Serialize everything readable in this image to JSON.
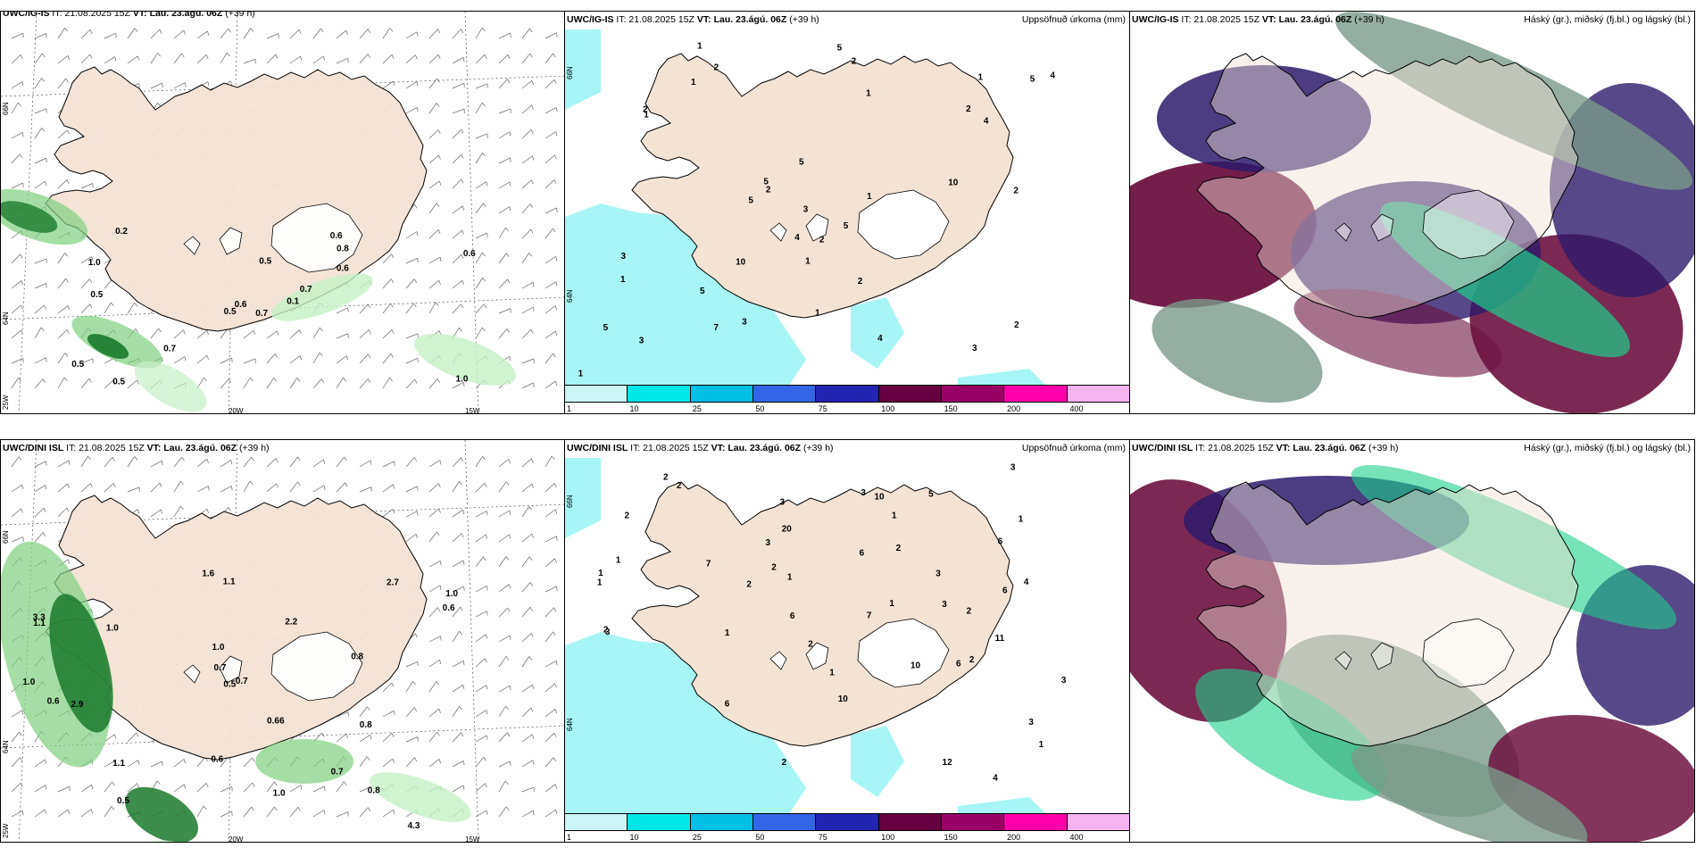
{
  "header_top": {
    "precip": {
      "src": "UWC/IG-IS",
      "it": "IT: 21.08.2025 15Z",
      "vt_label": "VT: Lau. 23.ágú. 06Z",
      "lead": "(+39 h)",
      "right": ""
    },
    "accum": {
      "src": "UWC/IG-IS",
      "it": "IT: 21.08.2025 15Z",
      "vt_label": "VT: Lau. 23.ágú. 06Z",
      "lead": "(+39 h)",
      "right": "Uppsöfnuð úrkoma (mm)"
    },
    "cloud": {
      "src": "UWC/IG-IS",
      "it": "IT: 21.08.2025 15Z",
      "vt_label": "VT: Lau. 23.ágú. 06Z",
      "lead": "(+39 h)",
      "right": "Háský (gr.), miðský (fj.bl.) og lágský (bl.)"
    }
  },
  "header_bottom": {
    "precip": {
      "src": "UWC/DINI ISL",
      "it": "IT: 21.08.2025 15Z",
      "vt_label": "VT: Lau. 23.ágú. 06Z",
      "lead": "(+39 h)",
      "right": ""
    },
    "accum": {
      "src": "UWC/DINI ISL",
      "it": "IT: 21.08.2025 15Z",
      "vt_label": "VT: Lau. 23.ágú. 06Z",
      "lead": "(+39 h)",
      "right": "Uppsöfnuð úrkoma (mm)"
    },
    "cloud": {
      "src": "UWC/DINI ISL",
      "it": "IT: 21.08.2025 15Z",
      "vt_label": "VT: Lau. 23.ágú. 06Z",
      "lead": "(+39 h)",
      "right": "Háský (gr.), miðský (fj.bl.) og lágský (bl.)"
    }
  },
  "axis_labels": {
    "lat66": "66N",
    "lat64": "64N",
    "lon25": "25W",
    "lon20": "20W",
    "lon15": "15W"
  },
  "colorbar": {
    "ticks": [
      "1",
      "10",
      "25",
      "50",
      "75",
      "100",
      "150",
      "200",
      "400"
    ],
    "colors": [
      "#ccf6f6",
      "#00e5e5",
      "#00bfe6",
      "#3366e6",
      "#2424b3",
      "#660040",
      "#990066",
      "#ff00aa",
      "#f5b3f0"
    ]
  },
  "colors": {
    "land": "#f2e3d5",
    "sea": "#ffffff",
    "precip_light": "#c7f0c7",
    "precip_mid": "#7ed07e",
    "precip_dark": "#1a7a2a",
    "accum_fill": "#a8f5f5",
    "cloud_high": "#7a9a8a",
    "cloud_mid": "#2d1a6b",
    "cloud_low": "#6d1240",
    "cloud_green": "#1ecf8a"
  },
  "precip_top_values": [
    "0.7",
    "1.0",
    "0.6",
    "0.5",
    "0.7",
    "0.7",
    "0.6",
    "0.5",
    "0.8",
    "0.1",
    "0.2",
    "1.0",
    "0.5",
    "0.6",
    "0.5",
    "0.6",
    "0.5"
  ],
  "precip_bottom_values": [
    "1.0",
    "1.1",
    "0.8",
    "1.0",
    "3.3",
    "4.3",
    "2.9",
    "2.2",
    "1.0",
    "2.7",
    "0.7",
    "0.8",
    "1.6",
    "1.1",
    "1.0",
    "1.1",
    "1.0",
    "0.6",
    "0.66",
    "0.6",
    "0.7",
    "0.8",
    "0.6",
    "0.7",
    "0.5",
    "0.5"
  ],
  "accum_top_values": [
    "1",
    "2",
    "2",
    "3",
    "1",
    "1",
    "1",
    "7",
    "10",
    "5",
    "2",
    "2",
    "2",
    "4",
    "3",
    "2",
    "3",
    "4",
    "5",
    "4",
    "3",
    "5",
    "10",
    "5",
    "4",
    "2",
    "5",
    "5",
    "5",
    "1",
    "5",
    "1",
    "1",
    "1",
    "2",
    "1",
    "2",
    "1",
    "3"
  ],
  "accum_bottom_values": [
    "4",
    "3",
    "2",
    "2",
    "3",
    "3",
    "2",
    "2",
    "6",
    "3",
    "1",
    "2",
    "12",
    "10",
    "1",
    "7",
    "20",
    "6",
    "6",
    "7",
    "11",
    "10",
    "10",
    "5",
    "2",
    "6",
    "2",
    "3",
    "2",
    "2",
    "3",
    "6",
    "3",
    "4",
    "2",
    "1",
    "1",
    "6",
    "1",
    "1",
    "3",
    "1",
    "1",
    "1",
    "2",
    "1",
    "3"
  ]
}
